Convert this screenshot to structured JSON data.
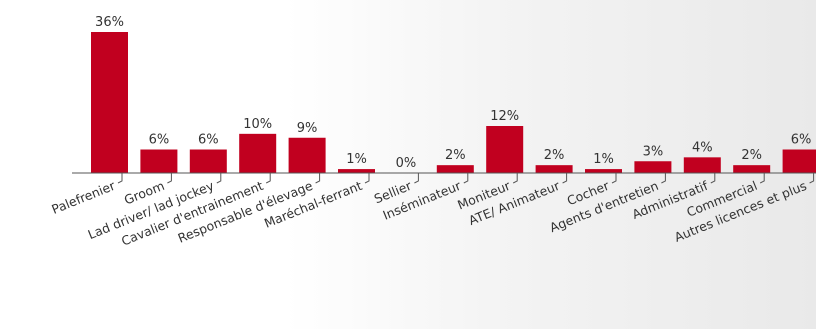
{
  "chart_data": {
    "type": "bar",
    "categories": [
      "Palefrenier",
      "Groom",
      "Lad driver/ lad jockey",
      "Cavalier d'entrainement",
      "Responsable d'élevage",
      "Maréchal-ferrant",
      "Sellier",
      "Inséminateur",
      "Moniteur",
      "ATE/ Animateur",
      "Cocher",
      "Agents d'entretien",
      "Administratif",
      "Commercial",
      "Autres licences et plus"
    ],
    "values": [
      36,
      6,
      6,
      10,
      9,
      1,
      0,
      2,
      12,
      2,
      1,
      3,
      4,
      2,
      6
    ],
    "value_labels": [
      "36%",
      "6%",
      "6%",
      "10%",
      "9%",
      "1%",
      "0%",
      "2%",
      "12%",
      "2%",
      "1%",
      "3%",
      "4%",
      "2%",
      "6%"
    ],
    "unit": "%",
    "title": "",
    "xlabel": "",
    "ylabel": "",
    "ylim": [
      0,
      36
    ],
    "grid": false,
    "legend": "none",
    "colors": {
      "bar": "#c1001f",
      "axis": "#555555",
      "text": "#333333"
    }
  }
}
